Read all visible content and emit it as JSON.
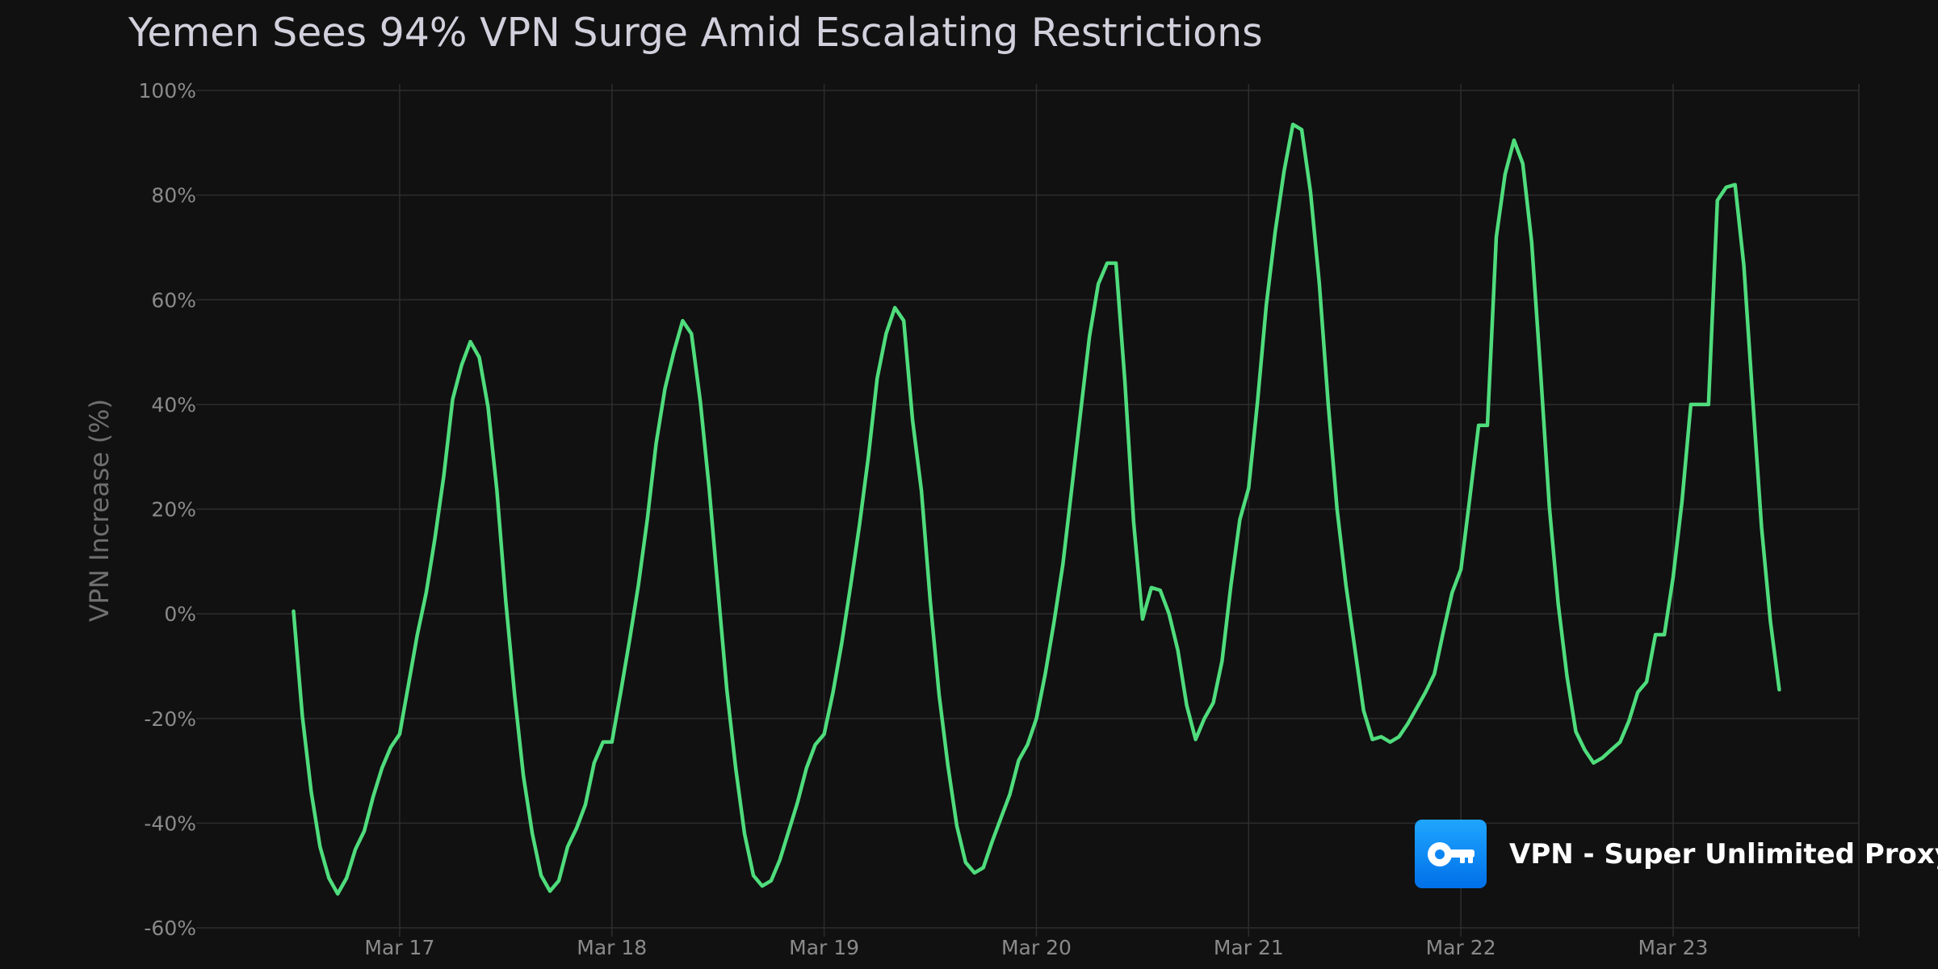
{
  "colors": {
    "background": "#111111",
    "series": "#4fdc7c",
    "grid": "#2d2d2d",
    "brand_gradient_top": "#1fa6ff",
    "brand_gradient_bottom": "#0070e8"
  },
  "brand": {
    "name": "VPN - Super Unlimited Proxy",
    "icon": "key-icon"
  },
  "chart_data": {
    "type": "line",
    "title": "Yemen Sees 94% VPN Surge Amid Escalating Restrictions",
    "xlabel": "",
    "ylabel": "VPN Increase (%)",
    "x_ticks": [
      "Mar 17",
      "Mar 18",
      "Mar 19",
      "Mar 20",
      "Mar 21",
      "Mar 22",
      "Mar 23"
    ],
    "xlim": [
      "Mar 16 01:00",
      "Mar 23 21:00"
    ],
    "ylim": [
      -60,
      100
    ],
    "y_ticks": [
      -60,
      -40,
      -20,
      0,
      20,
      40,
      60,
      80,
      100
    ],
    "y_tick_suffix": "%",
    "grid": true,
    "series": [
      {
        "points": [
          [
            "Mar 16 12:00",
            0.5
          ],
          [
            "Mar 16 13:00",
            -19.5
          ],
          [
            "Mar 16 14:00",
            -34.0
          ],
          [
            "Mar 16 15:00",
            -44.5
          ],
          [
            "Mar 16 16:00",
            -50.5
          ],
          [
            "Mar 16 17:00",
            -53.5
          ],
          [
            "Mar 16 18:00",
            -50.5
          ],
          [
            "Mar 16 19:00",
            -45.0
          ],
          [
            "Mar 16 20:00",
            -41.5
          ],
          [
            "Mar 16 21:00",
            -35.0
          ],
          [
            "Mar 16 22:00",
            -29.5
          ],
          [
            "Mar 16 23:00",
            -25.5
          ],
          [
            "Mar 17 00:00",
            -23.0
          ],
          [
            "Mar 17 01:00",
            -13.5
          ],
          [
            "Mar 17 02:00",
            -4.0
          ],
          [
            "Mar 17 03:00",
            4.0
          ],
          [
            "Mar 17 04:00",
            14.5
          ],
          [
            "Mar 17 05:00",
            26.5
          ],
          [
            "Mar 17 06:00",
            41.0
          ],
          [
            "Mar 17 07:00",
            47.5
          ],
          [
            "Mar 17 08:00",
            52.0
          ],
          [
            "Mar 17 09:00",
            49.0
          ],
          [
            "Mar 17 10:00",
            39.5
          ],
          [
            "Mar 17 11:00",
            23.5
          ],
          [
            "Mar 17 12:00",
            2.5
          ],
          [
            "Mar 17 13:00",
            -15.5
          ],
          [
            "Mar 17 14:00",
            -31.0
          ],
          [
            "Mar 17 15:00",
            -42.0
          ],
          [
            "Mar 17 16:00",
            -50.0
          ],
          [
            "Mar 17 17:00",
            -53.0
          ],
          [
            "Mar 17 18:00",
            -51.0
          ],
          [
            "Mar 17 19:00",
            -44.5
          ],
          [
            "Mar 17 20:00",
            -41.0
          ],
          [
            "Mar 17 21:00",
            -36.5
          ],
          [
            "Mar 17 22:00",
            -28.5
          ],
          [
            "Mar 17 23:00",
            -24.5
          ],
          [
            "Mar 18 00:00",
            -24.5
          ],
          [
            "Mar 18 01:00",
            -15.0
          ],
          [
            "Mar 18 02:00",
            -5.0
          ],
          [
            "Mar 18 03:00",
            5.5
          ],
          [
            "Mar 18 04:00",
            18.0
          ],
          [
            "Mar 18 05:00",
            32.5
          ],
          [
            "Mar 18 06:00",
            43.0
          ],
          [
            "Mar 18 07:00",
            50.0
          ],
          [
            "Mar 18 08:00",
            56.0
          ],
          [
            "Mar 18 09:00",
            53.5
          ],
          [
            "Mar 18 10:00",
            40.5
          ],
          [
            "Mar 18 11:00",
            24.0
          ],
          [
            "Mar 18 12:00",
            4.5
          ],
          [
            "Mar 18 13:00",
            -14.5
          ],
          [
            "Mar 18 14:00",
            -29.5
          ],
          [
            "Mar 18 15:00",
            -42.0
          ],
          [
            "Mar 18 16:00",
            -50.0
          ],
          [
            "Mar 18 17:00",
            -52.0
          ],
          [
            "Mar 18 18:00",
            -51.0
          ],
          [
            "Mar 18 19:00",
            -47.0
          ],
          [
            "Mar 18 20:00",
            -41.5
          ],
          [
            "Mar 18 21:00",
            -36.0
          ],
          [
            "Mar 18 22:00",
            -29.5
          ],
          [
            "Mar 18 23:00",
            -25.0
          ],
          [
            "Mar 19 00:00",
            -23.0
          ],
          [
            "Mar 19 01:00",
            -15.0
          ],
          [
            "Mar 19 02:00",
            -5.5
          ],
          [
            "Mar 19 03:00",
            5.5
          ],
          [
            "Mar 19 04:00",
            17.0
          ],
          [
            "Mar 19 05:00",
            30.0
          ],
          [
            "Mar 19 06:00",
            45.0
          ],
          [
            "Mar 19 07:00",
            53.5
          ],
          [
            "Mar 19 08:00",
            58.5
          ],
          [
            "Mar 19 09:00",
            56.0
          ],
          [
            "Mar 19 10:00",
            37.0
          ],
          [
            "Mar 19 11:00",
            23.5
          ],
          [
            "Mar 19 12:00",
            2.5
          ],
          [
            "Mar 19 13:00",
            -15.5
          ],
          [
            "Mar 19 14:00",
            -29.0
          ],
          [
            "Mar 19 15:00",
            -40.5
          ],
          [
            "Mar 19 16:00",
            -47.5
          ],
          [
            "Mar 19 17:00",
            -49.5
          ],
          [
            "Mar 19 18:00",
            -48.5
          ],
          [
            "Mar 19 19:00",
            -43.5
          ],
          [
            "Mar 19 20:00",
            -39.0
          ],
          [
            "Mar 19 21:00",
            -34.5
          ],
          [
            "Mar 19 22:00",
            -28.0
          ],
          [
            "Mar 19 23:00",
            -25.0
          ],
          [
            "Mar 20 00:00",
            -20.0
          ],
          [
            "Mar 20 01:00",
            -11.5
          ],
          [
            "Mar 20 02:00",
            -1.5
          ],
          [
            "Mar 20 03:00",
            9.5
          ],
          [
            "Mar 20 04:00",
            24.0
          ],
          [
            "Mar 20 05:00",
            38.5
          ],
          [
            "Mar 20 06:00",
            53.0
          ],
          [
            "Mar 20 07:00",
            63.0
          ],
          [
            "Mar 20 08:00",
            67.0
          ],
          [
            "Mar 20 09:00",
            67.0
          ],
          [
            "Mar 20 10:00",
            44.5
          ],
          [
            "Mar 20 11:00",
            17.5
          ],
          [
            "Mar 20 12:00",
            -1.0
          ],
          [
            "Mar 20 13:00",
            5.0
          ],
          [
            "Mar 20 14:00",
            4.5
          ],
          [
            "Mar 20 15:00",
            0.0
          ],
          [
            "Mar 20 16:00",
            -7.0
          ],
          [
            "Mar 20 17:00",
            -17.5
          ],
          [
            "Mar 20 18:00",
            -24.0
          ],
          [
            "Mar 20 19:00",
            -20.0
          ],
          [
            "Mar 20 20:00",
            -17.0
          ],
          [
            "Mar 20 21:00",
            -9.0
          ],
          [
            "Mar 20 22:00",
            5.5
          ],
          [
            "Mar 20 23:00",
            18.0
          ],
          [
            "Mar 21 00:00",
            24.0
          ],
          [
            "Mar 21 01:00",
            40.5
          ],
          [
            "Mar 21 02:00",
            59.0
          ],
          [
            "Mar 21 03:00",
            73.0
          ],
          [
            "Mar 21 04:00",
            84.5
          ],
          [
            "Mar 21 05:00",
            93.5
          ],
          [
            "Mar 21 06:00",
            92.5
          ],
          [
            "Mar 21 07:00",
            80.5
          ],
          [
            "Mar 21 08:00",
            63.0
          ],
          [
            "Mar 21 09:00",
            40.0
          ],
          [
            "Mar 21 10:00",
            20.0
          ],
          [
            "Mar 21 11:00",
            5.5
          ],
          [
            "Mar 21 12:00",
            -6.5
          ],
          [
            "Mar 21 13:00",
            -18.5
          ],
          [
            "Mar 21 14:00",
            -24.0
          ],
          [
            "Mar 21 15:00",
            -23.5
          ],
          [
            "Mar 21 16:00",
            -24.5
          ],
          [
            "Mar 21 17:00",
            -23.5
          ],
          [
            "Mar 21 18:00",
            -21.0
          ],
          [
            "Mar 21 19:00",
            -18.0
          ],
          [
            "Mar 21 20:00",
            -15.0
          ],
          [
            "Mar 21 21:00",
            -11.5
          ],
          [
            "Mar 21 22:00",
            -3.5
          ],
          [
            "Mar 21 23:00",
            4.0
          ],
          [
            "Mar 22 00:00",
            8.5
          ],
          [
            "Mar 22 01:00",
            22.0
          ],
          [
            "Mar 22 02:00",
            36.0
          ],
          [
            "Mar 22 03:00",
            36.0
          ],
          [
            "Mar 22 04:00",
            72.0
          ],
          [
            "Mar 22 05:00",
            84.0
          ],
          [
            "Mar 22 06:00",
            90.5
          ],
          [
            "Mar 22 07:00",
            86.0
          ],
          [
            "Mar 22 08:00",
            71.0
          ],
          [
            "Mar 22 09:00",
            46.5
          ],
          [
            "Mar 22 10:00",
            20.5
          ],
          [
            "Mar 22 11:00",
            2.0
          ],
          [
            "Mar 22 12:00",
            -12.0
          ],
          [
            "Mar 22 13:00",
            -22.5
          ],
          [
            "Mar 22 14:00",
            -26.0
          ],
          [
            "Mar 22 15:00",
            -28.5
          ],
          [
            "Mar 22 16:00",
            -27.5
          ],
          [
            "Mar 22 17:00",
            -26.0
          ],
          [
            "Mar 22 18:00",
            -24.5
          ],
          [
            "Mar 22 19:00",
            -20.5
          ],
          [
            "Mar 22 20:00",
            -15.0
          ],
          [
            "Mar 22 21:00",
            -13.0
          ],
          [
            "Mar 22 22:00",
            -4.0
          ],
          [
            "Mar 22 23:00",
            -4.0
          ],
          [
            "Mar 23 00:00",
            7.0
          ],
          [
            "Mar 23 01:00",
            21.5
          ],
          [
            "Mar 23 02:00",
            40.0
          ],
          [
            "Mar 23 03:00",
            40.0
          ],
          [
            "Mar 23 04:00",
            40.0
          ],
          [
            "Mar 23 05:00",
            79.0
          ],
          [
            "Mar 23 06:00",
            81.5
          ],
          [
            "Mar 23 07:00",
            82.0
          ],
          [
            "Mar 23 08:00",
            66.5
          ],
          [
            "Mar 23 09:00",
            41.0
          ],
          [
            "Mar 23 10:00",
            16.5
          ],
          [
            "Mar 23 11:00",
            -1.5
          ],
          [
            "Mar 23 12:00",
            -14.5
          ]
        ]
      }
    ]
  }
}
